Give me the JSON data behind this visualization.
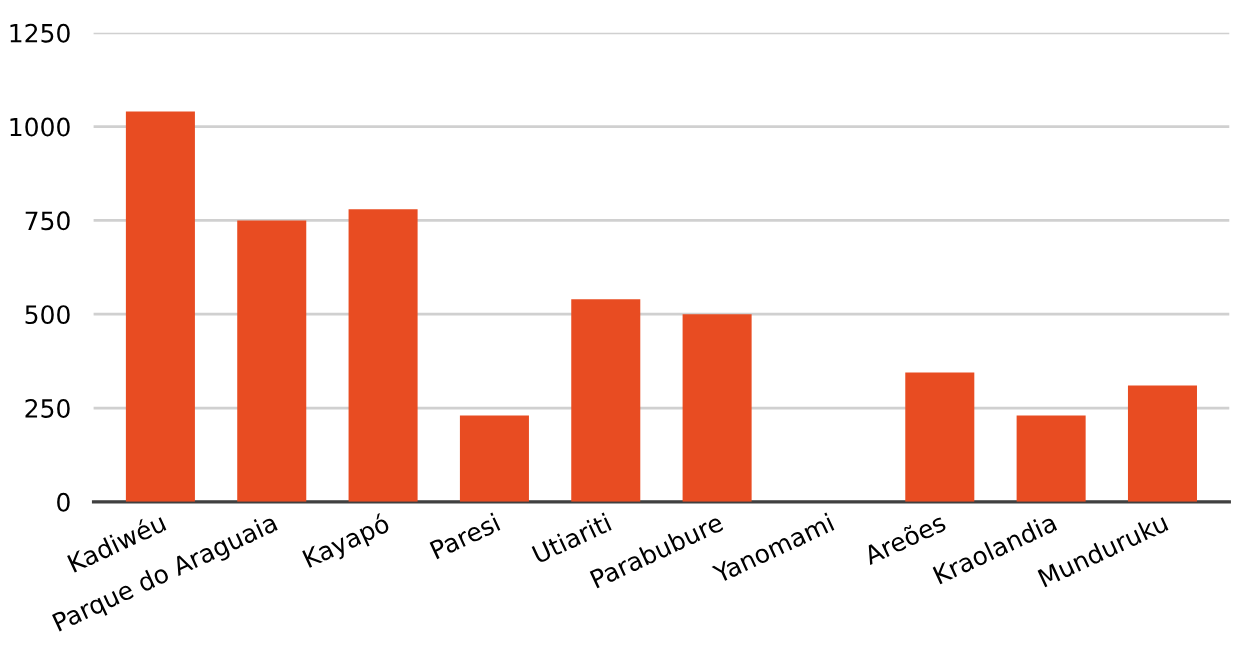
{
  "chart_data": {
    "type": "bar",
    "categories": [
      "Kadiwéu",
      "Parque do Araguaia",
      "Kayapó",
      "Paresi",
      "Utiariti",
      "Parabubure",
      "Yanomami",
      "Areões",
      "Kraolandia",
      "Munduruku"
    ],
    "values": [
      1040,
      750,
      780,
      230,
      540,
      500,
      0,
      345,
      230,
      310
    ],
    "color": "#e84c22",
    "ylim": [
      0,
      1250
    ],
    "yticks": [
      0,
      250,
      500,
      750,
      1000,
      1250
    ],
    "grid": "y"
  }
}
